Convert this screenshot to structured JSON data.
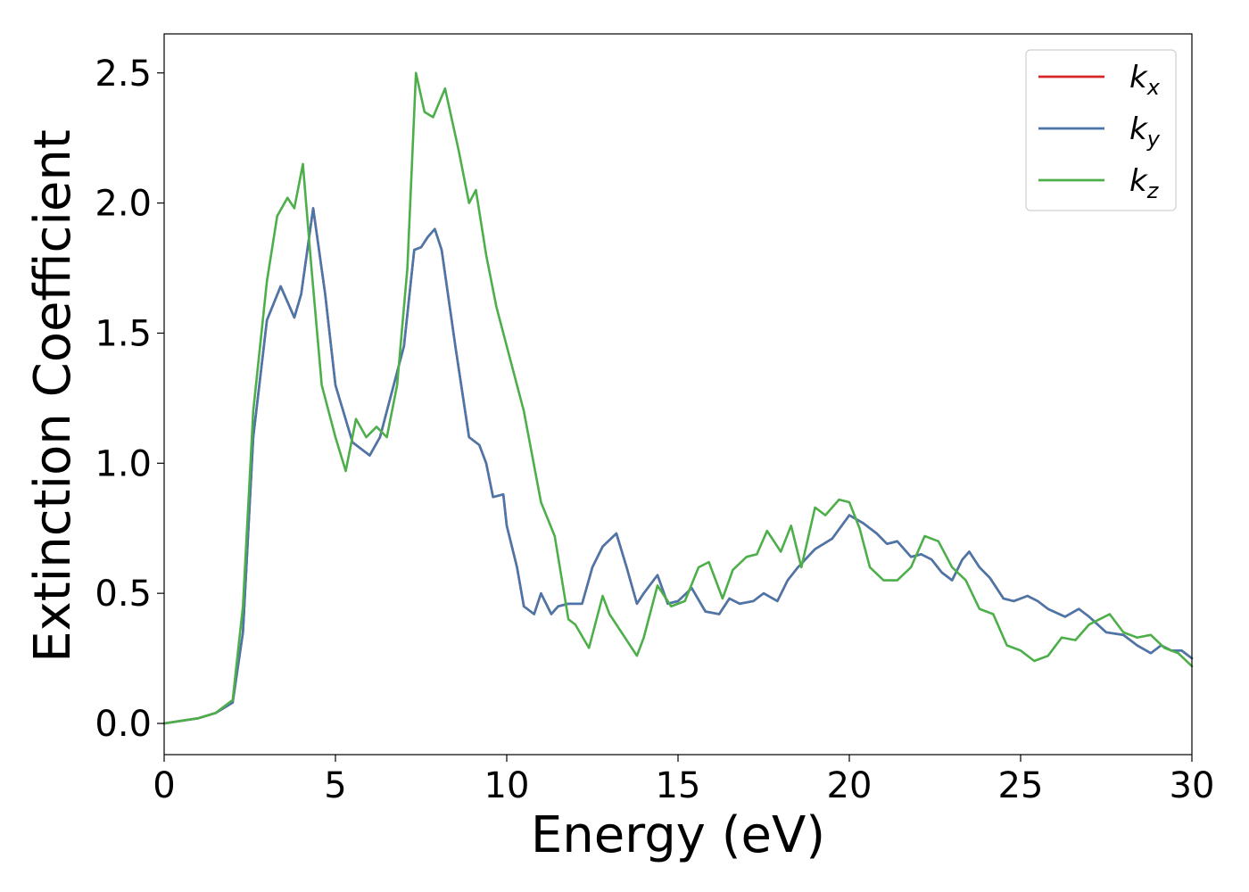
{
  "chart_data": {
    "type": "line",
    "title": "",
    "xlabel": "Energy (eV)",
    "ylabel": "Extinction Coefficient",
    "xlim": [
      0,
      30
    ],
    "ylim": [
      -0.12,
      2.65
    ],
    "xticks": [
      0,
      5,
      10,
      15,
      20,
      25,
      30
    ],
    "xtick_labels": [
      "0",
      "5",
      "10",
      "15",
      "20",
      "25",
      "30"
    ],
    "yticks": [
      0.0,
      0.5,
      1.0,
      1.5,
      2.0,
      2.5
    ],
    "ytick_labels": [
      "0.0",
      "0.5",
      "1.0",
      "1.5",
      "2.0",
      "2.5"
    ],
    "grid": false,
    "legend": {
      "placement": "top-right",
      "entries": [
        {
          "base": "k",
          "sub": "x",
          "color": "#d62728"
        },
        {
          "base": "k",
          "sub": "y",
          "color": "#4a77aa"
        },
        {
          "base": "k",
          "sub": "z",
          "color": "#4daf4a"
        }
      ]
    },
    "series": [
      {
        "name": "kx",
        "color": "#d62728",
        "x": [
          0,
          1,
          1.5,
          2.0,
          2.3,
          2.6,
          3.0,
          3.4,
          3.8,
          4.0,
          4.35,
          4.7,
          5.0,
          5.5,
          6.0,
          6.3,
          6.6,
          7.0,
          7.3,
          7.5,
          7.7,
          7.9,
          8.1,
          8.5,
          8.9,
          9.2,
          9.4,
          9.6,
          9.9,
          10.0,
          10.3,
          10.5,
          10.8,
          11.0,
          11.3,
          11.5,
          11.8,
          12.2,
          12.5,
          12.8,
          13.2,
          13.5,
          13.8,
          14.0,
          14.4,
          14.7,
          15.0,
          15.4,
          15.8,
          16.2,
          16.5,
          16.8,
          17.2,
          17.5,
          17.9,
          18.2,
          18.5,
          19.0,
          19.5,
          20.0,
          20.4,
          20.8,
          21.1,
          21.4,
          21.8,
          22.1,
          22.4,
          22.7,
          23.0,
          23.3,
          23.5,
          23.8,
          24.1,
          24.5,
          24.8,
          25.2,
          25.5,
          25.8,
          26.3,
          26.7,
          27.0,
          27.5,
          28.0,
          28.4,
          28.8,
          29.1,
          29.4,
          29.7,
          30.0
        ],
        "y": [
          0.0,
          0.02,
          0.04,
          0.08,
          0.35,
          1.1,
          1.55,
          1.68,
          1.56,
          1.65,
          1.98,
          1.65,
          1.3,
          1.08,
          1.03,
          1.1,
          1.25,
          1.45,
          1.82,
          1.83,
          1.87,
          1.9,
          1.82,
          1.45,
          1.1,
          1.07,
          1.0,
          0.87,
          0.88,
          0.76,
          0.6,
          0.45,
          0.42,
          0.5,
          0.42,
          0.45,
          0.46,
          0.46,
          0.6,
          0.68,
          0.73,
          0.6,
          0.46,
          0.5,
          0.57,
          0.46,
          0.47,
          0.52,
          0.43,
          0.42,
          0.48,
          0.46,
          0.47,
          0.5,
          0.47,
          0.55,
          0.6,
          0.67,
          0.71,
          0.8,
          0.77,
          0.73,
          0.69,
          0.7,
          0.64,
          0.65,
          0.63,
          0.58,
          0.55,
          0.63,
          0.66,
          0.6,
          0.56,
          0.48,
          0.47,
          0.49,
          0.47,
          0.44,
          0.41,
          0.44,
          0.41,
          0.35,
          0.34,
          0.3,
          0.27,
          0.3,
          0.28,
          0.28,
          0.25
        ]
      },
      {
        "name": "ky",
        "color": "#4a77aa",
        "x": [
          0,
          1,
          1.5,
          2.0,
          2.3,
          2.6,
          3.0,
          3.4,
          3.8,
          4.0,
          4.35,
          4.7,
          5.0,
          5.5,
          6.0,
          6.3,
          6.6,
          7.0,
          7.3,
          7.5,
          7.7,
          7.9,
          8.1,
          8.5,
          8.9,
          9.2,
          9.4,
          9.6,
          9.9,
          10.0,
          10.3,
          10.5,
          10.8,
          11.0,
          11.3,
          11.5,
          11.8,
          12.2,
          12.5,
          12.8,
          13.2,
          13.5,
          13.8,
          14.0,
          14.4,
          14.7,
          15.0,
          15.4,
          15.8,
          16.2,
          16.5,
          16.8,
          17.2,
          17.5,
          17.9,
          18.2,
          18.5,
          19.0,
          19.5,
          20.0,
          20.4,
          20.8,
          21.1,
          21.4,
          21.8,
          22.1,
          22.4,
          22.7,
          23.0,
          23.3,
          23.5,
          23.8,
          24.1,
          24.5,
          24.8,
          25.2,
          25.5,
          25.8,
          26.3,
          26.7,
          27.0,
          27.5,
          28.0,
          28.4,
          28.8,
          29.1,
          29.4,
          29.7,
          30.0
        ],
        "y": [
          0.0,
          0.02,
          0.04,
          0.08,
          0.35,
          1.1,
          1.55,
          1.68,
          1.56,
          1.65,
          1.98,
          1.65,
          1.3,
          1.08,
          1.03,
          1.1,
          1.25,
          1.45,
          1.82,
          1.83,
          1.87,
          1.9,
          1.82,
          1.45,
          1.1,
          1.07,
          1.0,
          0.87,
          0.88,
          0.76,
          0.6,
          0.45,
          0.42,
          0.5,
          0.42,
          0.45,
          0.46,
          0.46,
          0.6,
          0.68,
          0.73,
          0.6,
          0.46,
          0.5,
          0.57,
          0.46,
          0.47,
          0.52,
          0.43,
          0.42,
          0.48,
          0.46,
          0.47,
          0.5,
          0.47,
          0.55,
          0.6,
          0.67,
          0.71,
          0.8,
          0.77,
          0.73,
          0.69,
          0.7,
          0.64,
          0.65,
          0.63,
          0.58,
          0.55,
          0.63,
          0.66,
          0.6,
          0.56,
          0.48,
          0.47,
          0.49,
          0.47,
          0.44,
          0.41,
          0.44,
          0.41,
          0.35,
          0.34,
          0.3,
          0.27,
          0.3,
          0.28,
          0.28,
          0.25
        ]
      },
      {
        "name": "kz",
        "color": "#4daf4a",
        "x": [
          0,
          1,
          1.5,
          2.0,
          2.3,
          2.6,
          3.0,
          3.3,
          3.6,
          3.8,
          4.05,
          4.3,
          4.6,
          5.0,
          5.3,
          5.6,
          5.9,
          6.2,
          6.5,
          6.8,
          7.1,
          7.35,
          7.6,
          7.85,
          8.2,
          8.6,
          8.9,
          9.1,
          9.4,
          9.7,
          10.0,
          10.5,
          11.0,
          11.4,
          11.8,
          12.0,
          12.4,
          12.8,
          13.0,
          13.4,
          13.8,
          14.0,
          14.4,
          14.8,
          15.2,
          15.6,
          15.9,
          16.3,
          16.6,
          17.0,
          17.3,
          17.6,
          18.0,
          18.3,
          18.6,
          19.0,
          19.3,
          19.7,
          20.0,
          20.3,
          20.6,
          21.0,
          21.4,
          21.8,
          22.2,
          22.6,
          23.0,
          23.4,
          23.8,
          24.2,
          24.6,
          25.0,
          25.4,
          25.8,
          26.2,
          26.6,
          27.0,
          27.3,
          27.6,
          28.0,
          28.4,
          28.8,
          29.2,
          29.6,
          30.0
        ],
        "y": [
          0.0,
          0.02,
          0.04,
          0.09,
          0.45,
          1.2,
          1.7,
          1.95,
          2.02,
          1.98,
          2.15,
          1.75,
          1.3,
          1.1,
          0.97,
          1.17,
          1.1,
          1.14,
          1.1,
          1.3,
          1.75,
          2.5,
          2.35,
          2.33,
          2.44,
          2.2,
          2.0,
          2.05,
          1.8,
          1.6,
          1.45,
          1.2,
          0.85,
          0.72,
          0.4,
          0.38,
          0.29,
          0.49,
          0.42,
          0.34,
          0.26,
          0.33,
          0.53,
          0.45,
          0.47,
          0.6,
          0.62,
          0.48,
          0.59,
          0.64,
          0.65,
          0.74,
          0.66,
          0.76,
          0.6,
          0.83,
          0.8,
          0.86,
          0.85,
          0.75,
          0.6,
          0.55,
          0.55,
          0.6,
          0.72,
          0.7,
          0.6,
          0.55,
          0.44,
          0.42,
          0.3,
          0.28,
          0.24,
          0.26,
          0.33,
          0.32,
          0.38,
          0.4,
          0.42,
          0.35,
          0.33,
          0.34,
          0.29,
          0.27,
          0.22
        ]
      }
    ]
  }
}
